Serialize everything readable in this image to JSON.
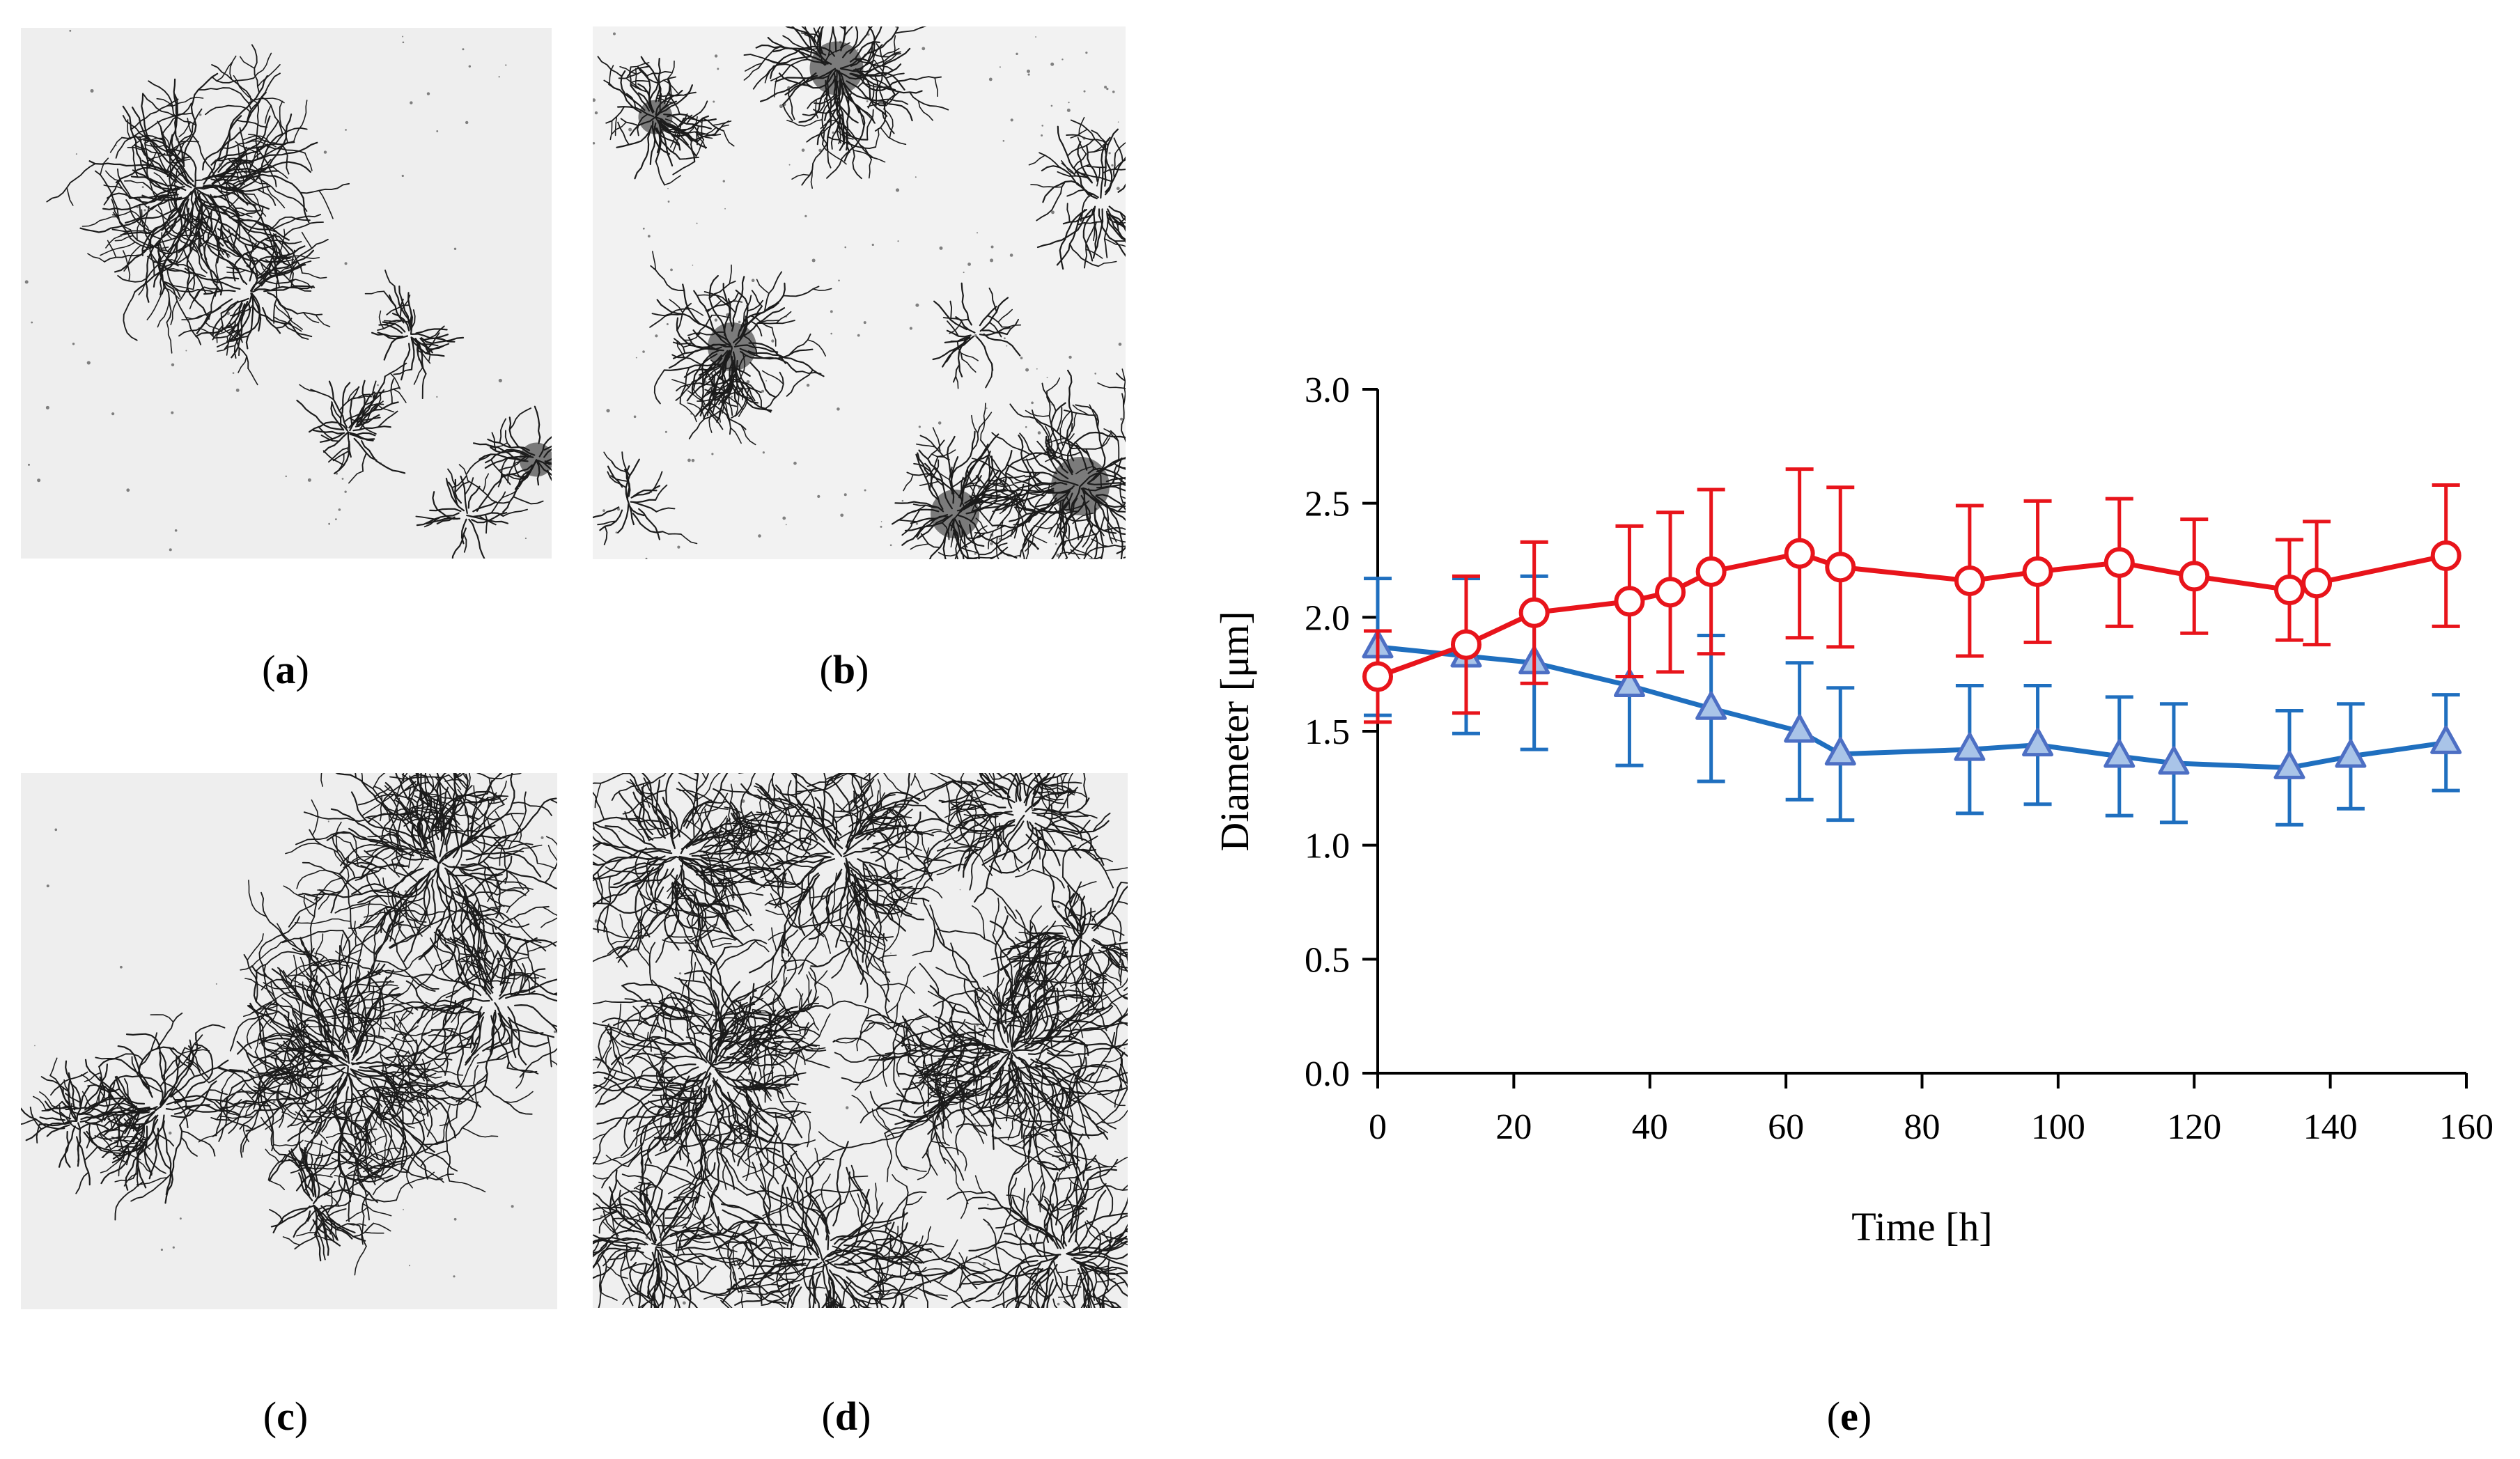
{
  "panels": [
    {
      "id": "a",
      "label_open": "(",
      "label_letter": "a",
      "label_close": ")",
      "background": "#eeeeee"
    },
    {
      "id": "b",
      "label_open": "(",
      "label_letter": "b",
      "label_close": ")",
      "background": "#f2f2f2"
    },
    {
      "id": "c",
      "label_open": "(",
      "label_letter": "c",
      "label_close": ")",
      "background": "#eeeeee"
    },
    {
      "id": "d",
      "label_open": "(",
      "label_letter": "d",
      "label_close": ")",
      "background": "#efefef"
    },
    {
      "id": "e",
      "label_open": "(",
      "label_letter": "e",
      "label_close": ")"
    }
  ],
  "chart_data": {
    "type": "line",
    "xlabel": "Time [h]",
    "ylabel": "Diameter [μm]",
    "xlim": [
      0,
      160
    ],
    "ylim": [
      0,
      3.0
    ],
    "xticks": [
      "0",
      "20",
      "40",
      "60",
      "80",
      "100",
      "120",
      "140",
      "160"
    ],
    "yticks": [
      "0.0",
      "0.5",
      "1.0",
      "1.5",
      "2.0",
      "2.5",
      "3.0"
    ],
    "series": [
      {
        "name": "circle series",
        "marker": "circle",
        "color": "#e8141b",
        "x": [
          0,
          13,
          23,
          37,
          43,
          49,
          62,
          68,
          87,
          97,
          109,
          120,
          134,
          138,
          157
        ],
        "y": [
          1.74,
          1.88,
          2.02,
          2.07,
          2.11,
          2.2,
          2.28,
          2.22,
          2.16,
          2.2,
          2.24,
          2.18,
          2.12,
          2.15,
          2.27
        ],
        "err": [
          0.2,
          0.3,
          0.31,
          0.33,
          0.35,
          0.36,
          0.37,
          0.35,
          0.33,
          0.31,
          0.28,
          0.25,
          0.22,
          0.27,
          0.31
        ]
      },
      {
        "name": "triangle series",
        "marker": "triangle",
        "color": "#1f6fbf",
        "marker_fill": "#a9c4e8",
        "x": [
          0,
          13,
          23,
          37,
          49,
          62,
          68,
          87,
          97,
          109,
          117,
          134,
          143,
          157
        ],
        "y": [
          1.87,
          1.83,
          1.8,
          1.7,
          1.6,
          1.5,
          1.4,
          1.42,
          1.44,
          1.39,
          1.36,
          1.34,
          1.39,
          1.45
        ],
        "err": [
          0.3,
          0.34,
          0.38,
          0.35,
          0.32,
          0.3,
          0.29,
          0.28,
          0.26,
          0.26,
          0.26,
          0.25,
          0.23,
          0.21
        ]
      }
    ]
  }
}
